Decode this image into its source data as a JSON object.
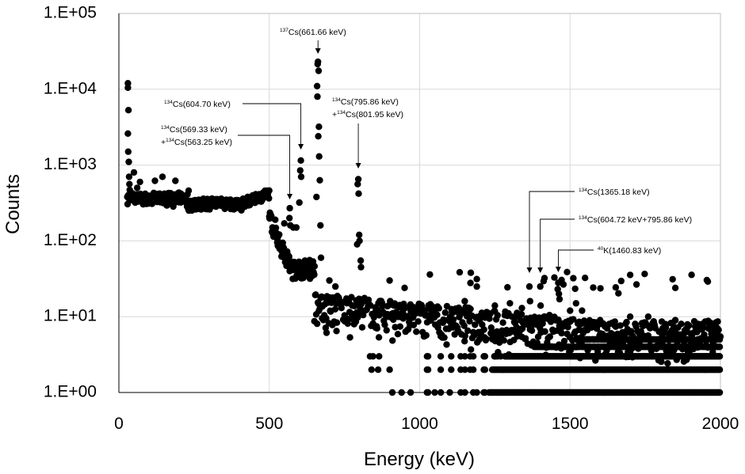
{
  "chart_data": {
    "type": "scatter",
    "title": "",
    "xlabel": "Energy (keV)",
    "ylabel": "Counts",
    "xlim": [
      0,
      2000
    ],
    "ylim": [
      1,
      100000
    ],
    "yscale": "log",
    "grid": true,
    "x_ticks": [
      "0",
      "500",
      "1000",
      "1500",
      "2000"
    ],
    "y_ticks": [
      "1.E+00",
      "1.E+01",
      "1.E+02",
      "1.E+03",
      "1.E+04",
      "1.E+05"
    ],
    "peaks": [
      {
        "x": 30,
        "y": 12000
      },
      {
        "x": 568,
        "y": 270
      },
      {
        "x": 605,
        "y": 1150
      },
      {
        "x": 662,
        "y": 23000
      },
      {
        "x": 796,
        "y": 650
      },
      {
        "x": 1365,
        "y": 25
      },
      {
        "x": 1401,
        "y": 25
      },
      {
        "x": 1461,
        "y": 28
      }
    ],
    "annotations": [
      {
        "sup": "137",
        "text": "Cs(661.66 keV)",
        "x": 662,
        "y": 23000
      },
      {
        "sup": "134",
        "text": "Cs(604.70 keV)",
        "x": 605,
        "y": 1150
      },
      {
        "sup": "134",
        "text": "Cs(569.33 keV)",
        "line2_prefix": "+",
        "sup2": "134",
        "text2": "Cs(563.25 keV)",
        "x": 568,
        "y": 270
      },
      {
        "sup": "134",
        "text": "Cs(795.86 keV)",
        "line2_prefix": "+",
        "sup2": "134",
        "text2": "Cs(801.95 keV)",
        "x": 796,
        "y": 650
      },
      {
        "sup": "134",
        "text": "Cs(1365.18 keV)",
        "x": 1365,
        "y": 25
      },
      {
        "sup": "134",
        "text": "Cs(604.72 keV+795.86 keV)",
        "x": 1401,
        "y": 25
      },
      {
        "sup": "40",
        "text": "K(1460.83 keV)",
        "x": 1461,
        "y": 28
      }
    ]
  }
}
